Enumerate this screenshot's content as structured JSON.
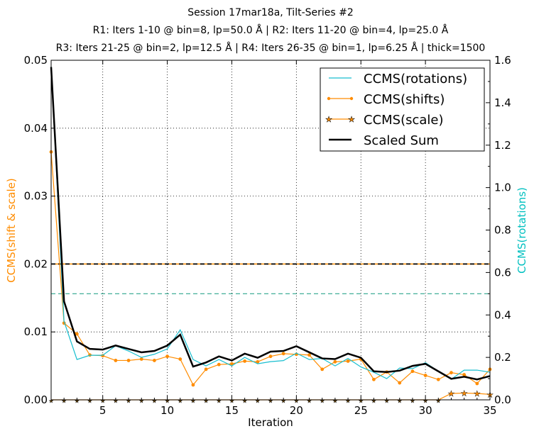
{
  "chart_data": {
    "type": "line",
    "title_lines": [
      "Session 17mar18a, Tilt-Series #2",
      "R1: Iters 1-10 @ bin=8, lp=50.0 Å | R2: Iters 11-20 @ bin=4, lp=25.0 Å",
      "R3: Iters 21-25 @ bin=2, lp=12.5 Å | R4: Iters 26-35 @ bin=1, lp=6.25 Å | thick=1500"
    ],
    "xlabel": "Iteration",
    "ylabel_left": "CCMS(shift & scale)",
    "ylabel_right": "CCMS(rotations)",
    "xlim": [
      1,
      35
    ],
    "ylim_left": [
      0,
      0.05
    ],
    "ylim_right": [
      0,
      1.6
    ],
    "x_ticks": [
      "5",
      "10",
      "15",
      "20",
      "25",
      "30",
      "35"
    ],
    "x_tick_values": [
      5,
      10,
      15,
      20,
      25,
      30,
      35
    ],
    "y_left_ticks": [
      "0.00",
      "0.01",
      "0.02",
      "0.03",
      "0.04",
      "0.05"
    ],
    "y_right_ticks": [
      "0.0",
      "0.2",
      "0.4",
      "0.6",
      "0.8",
      "1.0",
      "1.2",
      "1.4",
      "1.6"
    ],
    "grid": true,
    "legend_position": "top-right",
    "colors": {
      "rotations": "#17becf",
      "shifts": "#ff8c00",
      "scale": "#ff8c00",
      "sum": "#000000",
      "left_label": "#ff8c00",
      "right_label": "#00c0c0",
      "rot_threshold": "#2ca58d"
    },
    "x": [
      1,
      2,
      3,
      4,
      5,
      6,
      7,
      8,
      9,
      10,
      11,
      12,
      13,
      14,
      15,
      16,
      17,
      18,
      19,
      20,
      21,
      22,
      23,
      24,
      25,
      26,
      27,
      28,
      29,
      30,
      31,
      32,
      33,
      34,
      35
    ],
    "series": [
      {
        "name": "CCMS(rotations)",
        "axis": "right",
        "style": "line",
        "values": [
          1.57,
          0.37,
          0.19,
          0.21,
          0.21,
          0.255,
          0.23,
          0.2,
          0.215,
          0.24,
          0.33,
          0.19,
          0.16,
          0.19,
          0.16,
          0.2,
          0.17,
          0.18,
          0.185,
          0.22,
          0.19,
          0.195,
          0.16,
          0.195,
          0.155,
          0.13,
          0.1,
          0.15,
          0.147,
          0.175,
          0.135,
          0.097,
          0.14,
          0.14,
          0.13
        ]
      },
      {
        "name": "CCMS(shifts)",
        "axis": "left",
        "style": "dot",
        "values": [
          0.0365,
          0.0113,
          0.0097,
          0.0066,
          0.0065,
          0.0058,
          0.0058,
          0.006,
          0.0058,
          0.0064,
          0.006,
          0.0022,
          0.0045,
          0.0052,
          0.0053,
          0.0057,
          0.0056,
          0.0064,
          0.0068,
          0.0067,
          0.0066,
          0.0045,
          0.0056,
          0.0057,
          0.006,
          0.003,
          0.0041,
          0.0025,
          0.0042,
          0.0036,
          0.003,
          0.004,
          0.0037,
          0.0024,
          0.0045
        ]
      },
      {
        "name": "CCMS(scale)",
        "axis": "left",
        "style": "star",
        "values": [
          0,
          0,
          0,
          0,
          0,
          0,
          0,
          0,
          0,
          0,
          0,
          0,
          0,
          0,
          0,
          0,
          0,
          0,
          0,
          0,
          0,
          0,
          0,
          0,
          0,
          0,
          0,
          0,
          0,
          0,
          0,
          0.00094,
          0.001,
          0.00094,
          0.0008
        ]
      },
      {
        "name": "Scaled Sum",
        "axis": "left",
        "style": "thick",
        "values": [
          0.049,
          0.0145,
          0.0086,
          0.0075,
          0.0074,
          0.008,
          0.0075,
          0.007,
          0.0072,
          0.008,
          0.0096,
          0.0049,
          0.0055,
          0.0064,
          0.0058,
          0.0068,
          0.0062,
          0.0071,
          0.0072,
          0.0079,
          0.007,
          0.0061,
          0.006,
          0.0068,
          0.0062,
          0.0042,
          0.0041,
          0.0043,
          0.005,
          0.0053,
          0.0042,
          0.0031,
          0.0034,
          0.003,
          0.0035
        ]
      }
    ],
    "thresholds": [
      {
        "axis": "left",
        "value": 0.02,
        "color": "#000000"
      },
      {
        "axis": "right",
        "value": 0.5,
        "color": "#2ca58d"
      }
    ]
  }
}
